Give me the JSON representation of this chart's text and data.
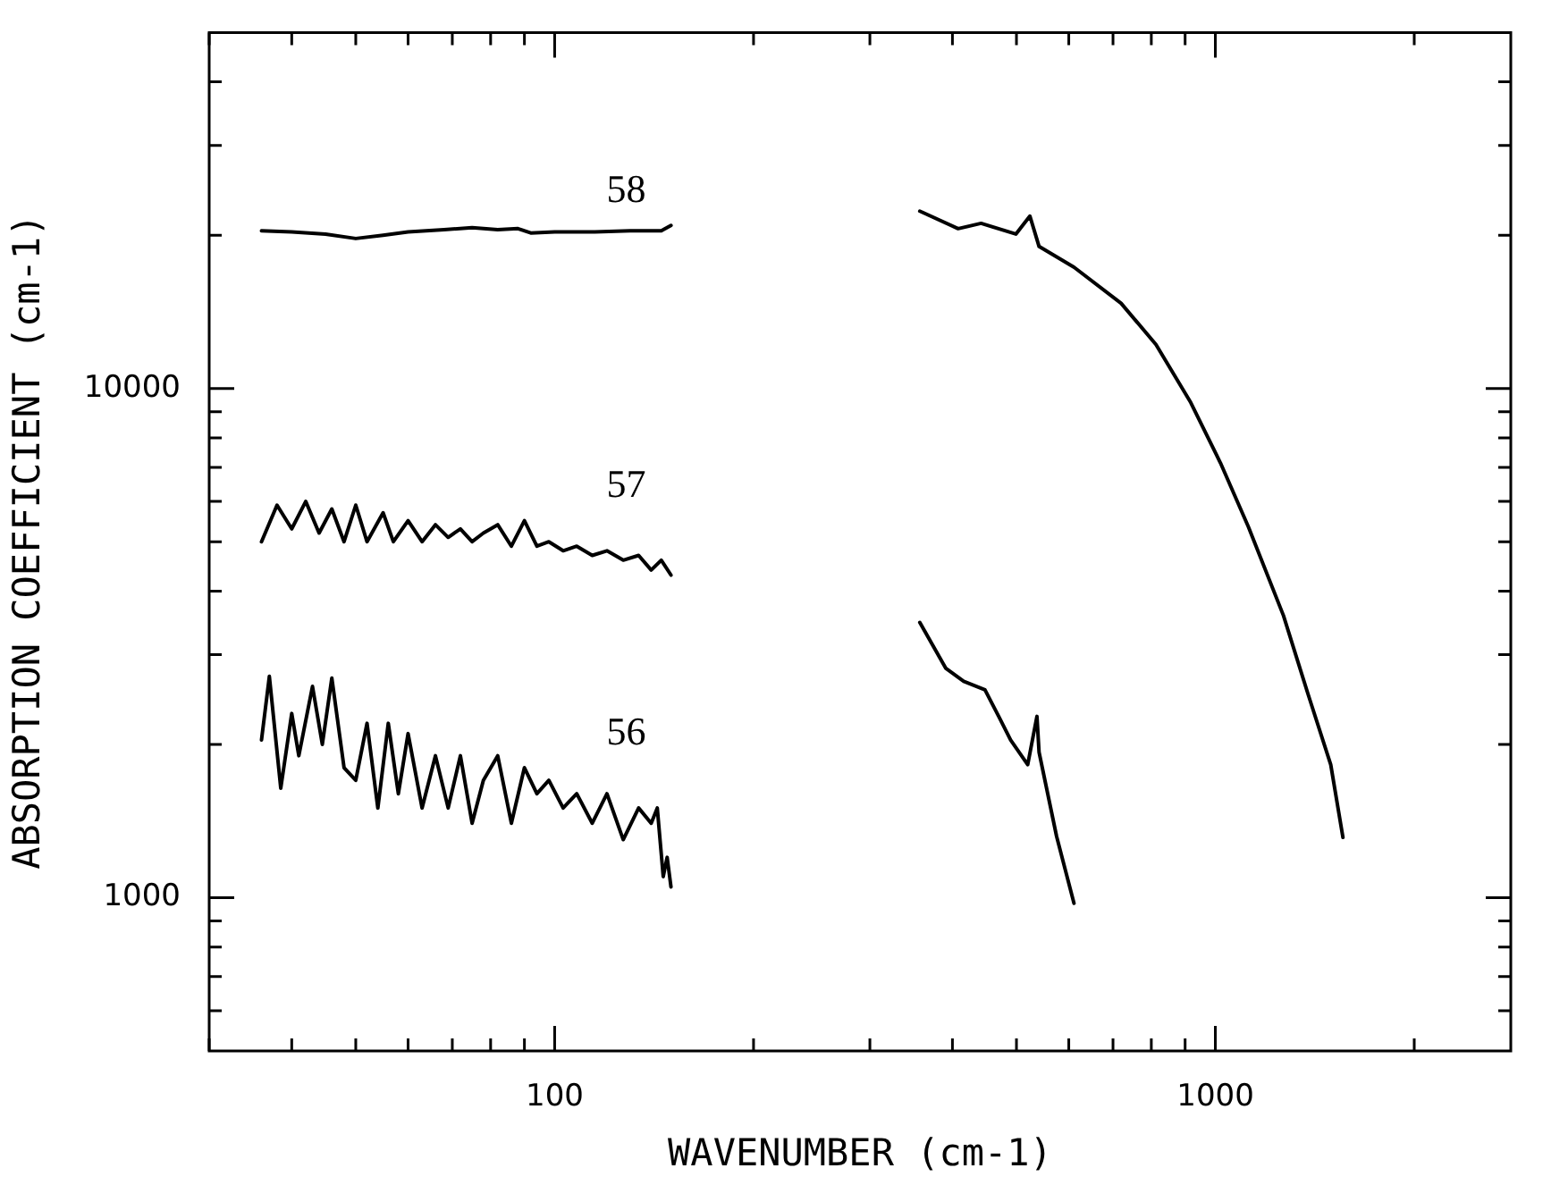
{
  "chart_data": {
    "type": "line",
    "xlabel": "WAVENUMBER (cm-1)",
    "ylabel": "ABSORPTION COEFFICIENT (cm-1)",
    "log": "xy",
    "xlim": [
      30,
      2800
    ],
    "ylim": [
      500,
      50000
    ],
    "xticks": [
      {
        "value": 30,
        "label": null
      },
      {
        "value": 40,
        "label": null
      },
      {
        "value": 50,
        "label": null
      },
      {
        "value": 60,
        "label": null
      },
      {
        "value": 70,
        "label": null
      },
      {
        "value": 80,
        "label": null
      },
      {
        "value": 90,
        "label": null
      },
      100,
      {
        "value": 200,
        "label": null
      },
      {
        "value": 300,
        "label": null
      },
      {
        "value": 400,
        "label": null
      },
      {
        "value": 500,
        "label": null
      },
      {
        "value": 600,
        "label": null
      },
      {
        "value": 700,
        "label": null
      },
      {
        "value": 800,
        "label": null
      },
      {
        "value": 900,
        "label": null
      },
      1000,
      {
        "value": 2000,
        "label": null
      }
    ],
    "yticks": [
      {
        "value": 600,
        "label": null
      },
      {
        "value": 700,
        "label": null
      },
      {
        "value": 800,
        "label": null
      },
      {
        "value": 900,
        "label": null
      },
      1000,
      {
        "value": 2000,
        "label": null
      },
      {
        "value": 3000,
        "label": null
      },
      {
        "value": 4000,
        "label": null
      },
      {
        "value": 5000,
        "label": null
      },
      {
        "value": 6000,
        "label": null
      },
      {
        "value": 7000,
        "label": null
      },
      {
        "value": 8000,
        "label": null
      },
      {
        "value": 9000,
        "label": null
      },
      10000,
      {
        "value": 20000,
        "label": null
      },
      {
        "value": 30000,
        "label": null
      },
      {
        "value": 40000,
        "label": null
      }
    ],
    "grid": false,
    "legend": false,
    "marker": "none",
    "line_style": "solid",
    "series": [
      {
        "name": "58",
        "color": "#000000",
        "x": [
          36,
          40,
          45,
          50,
          55,
          60,
          68,
          75,
          82,
          88,
          92,
          100,
          115,
          130,
          145,
          150
        ],
        "values": [
          20400,
          20300,
          20100,
          19700,
          20000,
          20300,
          20500,
          20700,
          20500,
          20600,
          20200,
          20300,
          20300,
          20400,
          20400,
          20900
        ]
      },
      {
        "name": "57",
        "color": "#000000",
        "x": [
          36,
          38,
          40,
          42,
          44,
          46,
          48,
          50,
          52,
          55,
          57,
          60,
          63,
          66,
          69,
          72,
          75,
          78,
          82,
          86,
          90,
          94,
          98,
          103,
          108,
          114,
          120,
          127,
          134,
          140,
          145,
          150
        ],
        "values": [
          5000,
          5900,
          5300,
          6000,
          5200,
          5800,
          5000,
          5900,
          5000,
          5700,
          5000,
          5500,
          5000,
          5400,
          5100,
          5300,
          5000,
          5200,
          5400,
          4900,
          5500,
          4900,
          5000,
          4800,
          4900,
          4700,
          4800,
          4600,
          4700,
          4400,
          4600,
          4300
        ]
      },
      {
        "name": "56",
        "color": "#000000",
        "x": [
          36,
          37,
          38.5,
          40,
          41,
          43,
          44.5,
          46,
          48,
          50,
          52,
          54,
          56,
          58,
          60,
          63,
          66,
          69,
          72,
          75,
          78,
          82,
          86,
          90,
          94,
          98,
          103,
          108,
          114,
          120,
          127,
          134,
          140,
          143,
          146,
          148,
          150
        ],
        "values": [
          2040,
          2720,
          1640,
          2300,
          1900,
          2600,
          2000,
          2700,
          1800,
          1700,
          2200,
          1500,
          2200,
          1600,
          2100,
          1500,
          1900,
          1500,
          1900,
          1400,
          1700,
          1900,
          1400,
          1800,
          1600,
          1700,
          1500,
          1600,
          1400,
          1600,
          1300,
          1500,
          1400,
          1500,
          1100,
          1200,
          1050
        ]
      },
      {
        "color": "#000000",
        "x": [
          357,
          408,
          442,
          499,
          524,
          541,
          611,
          720,
          813,
          918,
          1018,
          1122,
          1268,
          1380,
          1495,
          1560
        ],
        "values": [
          22300,
          20600,
          21100,
          20100,
          21800,
          19000,
          17300,
          14700,
          12200,
          9380,
          7140,
          5350,
          3580,
          2520,
          1825,
          1313
        ]
      },
      {
        "color": "#000000",
        "x": [
          357,
          391,
          416,
          448,
          470,
          490,
          520,
          537,
          541,
          575,
          611
        ],
        "values": [
          3470,
          2820,
          2660,
          2560,
          2270,
          2040,
          1825,
          2270,
          1930,
          1320,
          975
        ]
      }
    ]
  }
}
